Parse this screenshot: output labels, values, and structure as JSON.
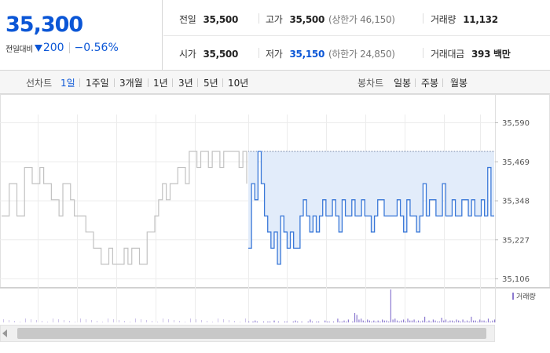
{
  "header": {
    "price": "35,300",
    "change_label": "전일대비",
    "change_value": "200",
    "change_pct": "−0.56%",
    "stats": {
      "prev_close": {
        "label": "전일",
        "value": "35,500"
      },
      "open": {
        "label": "시가",
        "value": "35,500"
      },
      "high": {
        "label": "고가",
        "value": "35,500",
        "sub": "(상한가 46,150)"
      },
      "low": {
        "label": "저가",
        "value": "35,150",
        "sub": "(하한가 24,850)"
      },
      "volume": {
        "label": "거래량",
        "value": "11,132"
      },
      "amount": {
        "label": "거래대금",
        "value": "393 백만"
      }
    }
  },
  "tabs": {
    "line_label": "선차트",
    "line": [
      "1일",
      "1주일",
      "3개월",
      "1년",
      "3년",
      "5년",
      "10년"
    ],
    "active": "1일",
    "candle_label": "봉차트",
    "candle": [
      "일봉",
      "주봉",
      "월봉"
    ]
  },
  "colors": {
    "accent": "#0b56d6",
    "prev_line": "#c2c2c2",
    "today_line": "#3a78d8",
    "fill": "#e2ecfa",
    "volume": "#8c7ad0"
  },
  "chart_data": {
    "type": "line",
    "ylim": [
      35106,
      35590
    ],
    "yticks": [
      "35,590",
      "35,469",
      "35,348",
      "35,227",
      "35,106"
    ],
    "reference_line": 35500,
    "series": [
      {
        "values": [
          35300,
          35300,
          35400,
          35400,
          35300,
          35300,
          35450,
          35450,
          35400,
          35400,
          35450,
          35400,
          35400,
          35350,
          35350,
          35300,
          35400,
          35400,
          35350,
          35300,
          35300,
          35300,
          35250,
          35250,
          35200,
          35200,
          35150,
          35150,
          35200,
          35150,
          35150,
          35150,
          35200,
          35150,
          35200,
          35200,
          35150,
          35150,
          35250,
          35250,
          35300,
          35350,
          35400,
          35350,
          35400,
          35400,
          35450,
          35450,
          35400,
          35500,
          35500,
          35450,
          35500,
          35500,
          35450,
          35500,
          35500,
          35450,
          35500,
          35500,
          35500,
          35500,
          35450,
          35500,
          35400
        ]
      },
      {
        "values": [
          35200,
          35400,
          35350,
          35500,
          35400,
          35300,
          35250,
          35200,
          35250,
          35150,
          35300,
          35250,
          35200,
          35250,
          35200,
          35200,
          35300,
          35350,
          35300,
          35250,
          35300,
          35250,
          35300,
          35350,
          35300,
          35300,
          35350,
          35300,
          35250,
          35350,
          35300,
          35300,
          35350,
          35300,
          35300,
          35350,
          35300,
          35300,
          35250,
          35300,
          35350,
          35350,
          35300,
          35300,
          35300,
          35300,
          35350,
          35300,
          35250,
          35350,
          35300,
          35300,
          35250,
          35300,
          35400,
          35300,
          35350,
          35350,
          35300,
          35300,
          35400,
          35300,
          35300,
          35350,
          35300,
          35300,
          35350,
          35350,
          35300,
          35350,
          35300,
          35300,
          35350,
          35300,
          35450,
          35300,
          35300
        ]
      }
    ],
    "volume_legend": "거래량",
    "volume": [
      1,
      0,
      1,
      2,
      1,
      0,
      0,
      1,
      0,
      1,
      1,
      0,
      2,
      0,
      1,
      0,
      0,
      1,
      1,
      0,
      0,
      1,
      2,
      1,
      0,
      1,
      0,
      0,
      1,
      3,
      1,
      0,
      1,
      1,
      0,
      0,
      2,
      1,
      1,
      0,
      1,
      0,
      4,
      1,
      1,
      2,
      1,
      3,
      0,
      1,
      10,
      8,
      3,
      4,
      2,
      1,
      3,
      2,
      1,
      2,
      1,
      2,
      1,
      3,
      2,
      2,
      1,
      35,
      3,
      4,
      2,
      1,
      2,
      3,
      1,
      4,
      2,
      2,
      3,
      1,
      2,
      1,
      2,
      6,
      1,
      2,
      1,
      3,
      2,
      1,
      1,
      5,
      2,
      3,
      1,
      2,
      2,
      1,
      3,
      2,
      1,
      3,
      1,
      2,
      1,
      6,
      2,
      2,
      1,
      3,
      2,
      2,
      1,
      4,
      1,
      2,
      3
    ]
  }
}
